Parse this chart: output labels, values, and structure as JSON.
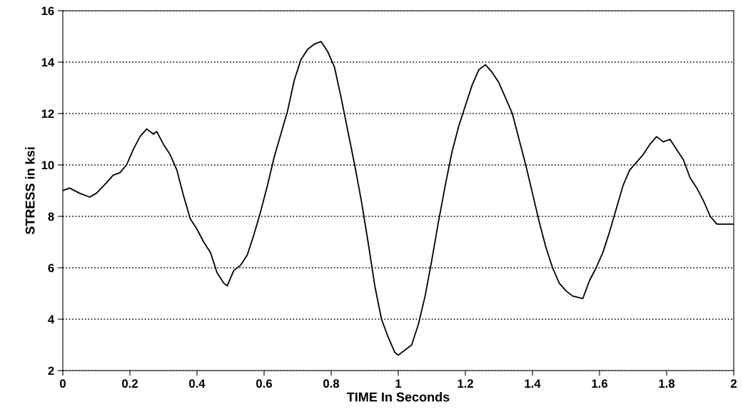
{
  "chart_data": {
    "type": "line",
    "xlabel": "TIME In Seconds",
    "ylabel": "STRESS in ksi",
    "x": [
      0,
      0.02,
      0.05,
      0.08,
      0.1,
      0.13,
      0.15,
      0.17,
      0.19,
      0.21,
      0.23,
      0.25,
      0.27,
      0.28,
      0.3,
      0.32,
      0.34,
      0.36,
      0.38,
      0.4,
      0.42,
      0.44,
      0.46,
      0.48,
      0.49,
      0.51,
      0.53,
      0.55,
      0.57,
      0.59,
      0.61,
      0.63,
      0.65,
      0.67,
      0.69,
      0.71,
      0.73,
      0.75,
      0.77,
      0.79,
      0.81,
      0.83,
      0.85,
      0.87,
      0.89,
      0.91,
      0.93,
      0.95,
      0.97,
      0.99,
      1.0,
      1.02,
      1.04,
      1.06,
      1.08,
      1.1,
      1.12,
      1.14,
      1.16,
      1.18,
      1.2,
      1.22,
      1.24,
      1.26,
      1.28,
      1.3,
      1.32,
      1.34,
      1.36,
      1.38,
      1.4,
      1.42,
      1.44,
      1.46,
      1.48,
      1.5,
      1.52,
      1.55,
      1.57,
      1.59,
      1.61,
      1.63,
      1.65,
      1.67,
      1.69,
      1.71,
      1.73,
      1.75,
      1.77,
      1.79,
      1.81,
      1.83,
      1.85,
      1.87,
      1.89,
      1.91,
      1.93,
      1.95,
      1.98,
      2.0
    ],
    "series": [
      {
        "color": "#000000",
        "values": [
          9.0,
          9.1,
          8.9,
          8.75,
          8.9,
          9.3,
          9.6,
          9.7,
          10.0,
          10.6,
          11.1,
          11.4,
          11.2,
          11.3,
          10.8,
          10.4,
          9.8,
          8.8,
          7.9,
          7.5,
          7.0,
          6.6,
          5.8,
          5.4,
          5.3,
          5.9,
          6.1,
          6.5,
          7.3,
          8.2,
          9.2,
          10.3,
          11.2,
          12.1,
          13.3,
          14.1,
          14.5,
          14.7,
          14.8,
          14.4,
          13.8,
          12.6,
          11.3,
          10.0,
          8.6,
          7.0,
          5.3,
          4.0,
          3.3,
          2.7,
          2.6,
          2.8,
          3.0,
          3.8,
          4.9,
          6.3,
          7.8,
          9.2,
          10.5,
          11.5,
          12.3,
          13.1,
          13.7,
          13.9,
          13.6,
          13.2,
          12.6,
          12.0,
          11.0,
          10.0,
          8.9,
          7.8,
          6.8,
          6.0,
          5.4,
          5.1,
          4.9,
          4.8,
          5.5,
          6.0,
          6.6,
          7.4,
          8.3,
          9.2,
          9.8,
          10.1,
          10.4,
          10.8,
          11.1,
          10.9,
          11.0,
          10.6,
          10.2,
          9.5,
          9.1,
          8.6,
          8.0,
          7.7,
          7.7,
          7.7
        ]
      }
    ],
    "xlim": [
      0,
      2
    ],
    "xticks": [
      0,
      0.2,
      0.4,
      0.6,
      0.8,
      1,
      1.2,
      1.4,
      1.6,
      1.8,
      2
    ],
    "ylim": [
      2,
      16
    ],
    "yticks": [
      2,
      4,
      6,
      8,
      10,
      12,
      14,
      16
    ],
    "grid": "y",
    "legend": false,
    "marker": "none",
    "line_style": "solid"
  }
}
